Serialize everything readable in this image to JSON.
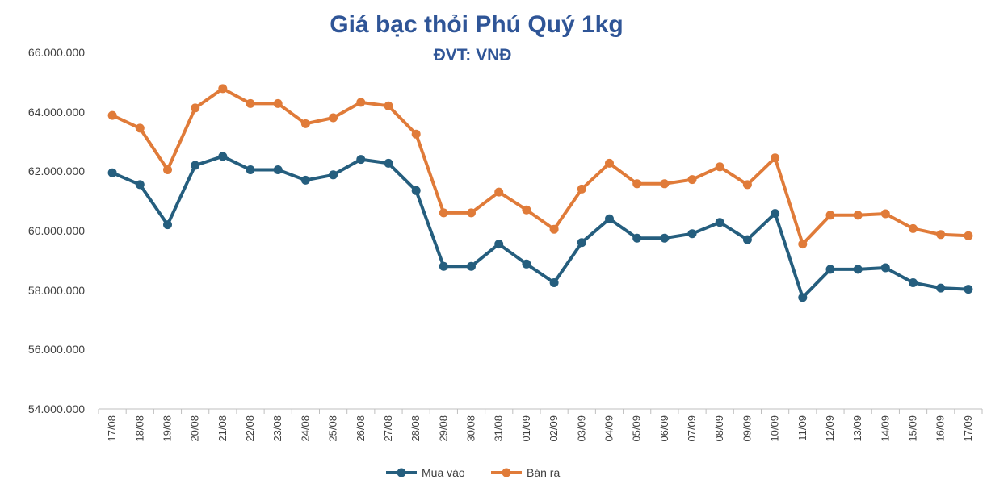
{
  "colors": {
    "series1": "#255e7e",
    "series2": "#e07b39",
    "title": "#2f5597",
    "text": "#404040",
    "axis": "#bfbfbf"
  },
  "chart_data": {
    "type": "line",
    "title": "Giá bạc thỏi Phú Quý 1kg",
    "subtitle": "ĐVT: VNĐ",
    "xlabel": "",
    "ylabel": "",
    "ylim": [
      54000000,
      66000000
    ],
    "y_ticks": [
      54000000,
      56000000,
      58000000,
      60000000,
      62000000,
      64000000,
      66000000
    ],
    "y_tick_labels": [
      "54.000.000",
      "56.000.000",
      "58.000.000",
      "60.000.000",
      "62.000.000",
      "64.000.000",
      "66.000.000"
    ],
    "grid": false,
    "legend_position": "bottom",
    "categories": [
      "17/08",
      "18/08",
      "19/08",
      "20/08",
      "21/08",
      "22/08",
      "23/08",
      "24/08",
      "25/08",
      "26/08",
      "27/08",
      "28/08",
      "29/08",
      "30/08",
      "31/08",
      "01/09",
      "02/09",
      "03/09",
      "04/09",
      "05/09",
      "06/09",
      "07/09",
      "08/09",
      "09/09",
      "10/09",
      "11/09",
      "12/09",
      "13/09",
      "14/09",
      "15/09",
      "16/09",
      "17/09"
    ],
    "series": [
      {
        "name": "Mua vào",
        "values": [
          61950000,
          61550000,
          60200000,
          62200000,
          62500000,
          62050000,
          62050000,
          61700000,
          61880000,
          62400000,
          62270000,
          61350000,
          58800000,
          58800000,
          59550000,
          58880000,
          58250000,
          59600000,
          60400000,
          59750000,
          59750000,
          59900000,
          60280000,
          59700000,
          60580000,
          57750000,
          58700000,
          58700000,
          58750000,
          58250000,
          58070000,
          58030000
        ]
      },
      {
        "name": "Bán ra",
        "values": [
          63880000,
          63450000,
          62050000,
          64130000,
          64780000,
          64280000,
          64280000,
          63600000,
          63800000,
          64320000,
          64200000,
          63250000,
          60600000,
          60600000,
          61300000,
          60700000,
          60050000,
          61400000,
          62270000,
          61580000,
          61580000,
          61720000,
          62150000,
          61550000,
          62450000,
          59550000,
          60520000,
          60520000,
          60570000,
          60070000,
          59870000,
          59830000
        ]
      }
    ]
  }
}
